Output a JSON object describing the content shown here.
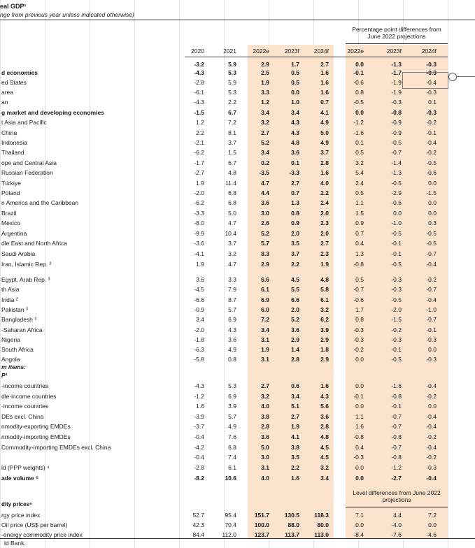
{
  "title": "eal GDP¹",
  "subtitle": "nge from previous year unless indicated otherwise)",
  "notes": {
    "pp_diff": "Percentage point differences from June 2022 projections",
    "level_diff": "Level differences from June 2022 projections"
  },
  "columns": [
    "2020",
    "2021",
    "2022e",
    "2023f",
    "2024f",
    "2022e",
    "2023f",
    "2024f"
  ],
  "rows": [
    {
      "label": "",
      "bold": true,
      "values": [
        "-3.2",
        "5.9",
        "2.9",
        "1.7",
        "2.7",
        "0.0",
        "-1.3",
        "-0.3"
      ]
    },
    {
      "label": "d economies",
      "bold": true,
      "values": [
        "-4.3",
        "5.3",
        "2.5",
        "0.5",
        "1.6",
        "-0.1",
        "-1.7",
        "-0.3"
      ]
    },
    {
      "label": "ed States",
      "values": [
        "-2.8",
        "5.9",
        "1.9",
        "0.5",
        "1.6",
        "-0.6",
        "-1.9",
        "-0.4"
      ]
    },
    {
      "label": "area",
      "values": [
        "-6.1",
        "5.3",
        "3.3",
        "0.0",
        "1.6",
        "0.8",
        "-1.9",
        "-0.3"
      ]
    },
    {
      "label": "an",
      "values": [
        "-4.3",
        "2.2",
        "1.2",
        "1.0",
        "0.7",
        "-0.5",
        "-0.3",
        "0.1"
      ]
    },
    {
      "label": "g market and developing economies",
      "bold": true,
      "values": [
        "-1.5",
        "6.7",
        "3.4",
        "3.4",
        "4.1",
        "0.0",
        "-0.8",
        "-0.3"
      ]
    },
    {
      "label": "t Asia and Pacific",
      "values": [
        "1.2",
        "7.2",
        "3.2",
        "4.3",
        "4.9",
        "-1.2",
        "-0.9",
        "-0.2"
      ]
    },
    {
      "label": "China",
      "values": [
        "2.2",
        "8.1",
        "2.7",
        "4.3",
        "5.0",
        "-1.6",
        "-0.9",
        "-0.1"
      ]
    },
    {
      "label": "Indonesia",
      "values": [
        "-2.1",
        "3.7",
        "5.2",
        "4.8",
        "4.9",
        "0.1",
        "-0.5",
        "-0.4"
      ]
    },
    {
      "label": "Thailand",
      "values": [
        "-6.2",
        "1.5",
        "3.4",
        "3.6",
        "3.7",
        "0.5",
        "-0.7",
        "-0.2"
      ]
    },
    {
      "label": "ope and Central Asia",
      "values": [
        "-1.7",
        "6.7",
        "0.2",
        "0.1",
        "2.8",
        "3.2",
        "-1.4",
        "-0.5"
      ]
    },
    {
      "label": "Russian Federation",
      "values": [
        "-2.7",
        "4.8",
        "-3.5",
        "-3.3",
        "1.6",
        "5.4",
        "-1.3",
        "-0.6"
      ]
    },
    {
      "label": "Türkiye",
      "values": [
        "1.9",
        "11.4",
        "4.7",
        "2.7",
        "4.0",
        "2.4",
        "-0.5",
        "0.0"
      ]
    },
    {
      "label": "Poland",
      "values": [
        "-2.0",
        "6.8",
        "4.4",
        "0.7",
        "2.2",
        "0.5",
        "-2.9",
        "-1.5"
      ]
    },
    {
      "label": "n America and the Caribbean",
      "values": [
        "-6.2",
        "6.8",
        "3.6",
        "1.3",
        "2.4",
        "1.1",
        "-0.6",
        "0.0"
      ]
    },
    {
      "label": "Brazil",
      "values": [
        "-3.3",
        "5.0",
        "3.0",
        "0.8",
        "2.0",
        "1.5",
        "0.0",
        "0.0"
      ]
    },
    {
      "label": "Mexico",
      "values": [
        "-8.0",
        "4.7",
        "2.6",
        "0.9",
        "2.3",
        "0.9",
        "-1.0",
        "0.3"
      ]
    },
    {
      "label": "Argentina",
      "values": [
        "-9.9",
        "10.4",
        "5.2",
        "2.0",
        "2.0",
        "0.7",
        "-0.5",
        "-0.5"
      ]
    },
    {
      "label": "dle East and North Africa",
      "values": [
        "-3.6",
        "3.7",
        "5.7",
        "3.5",
        "2.7",
        "0.4",
        "-0.1",
        "-0.5"
      ]
    },
    {
      "label": "Saudi Arabia",
      "values": [
        "-4.1",
        "3.2",
        "8.3",
        "3.7",
        "2.3",
        "1.3",
        "-0.1",
        "-0.7"
      ]
    },
    {
      "label": "Iran, Islamic Rep. ²",
      "values": [
        "1.9",
        "4.7",
        "2.9",
        "2.2",
        "1.9",
        "-0.8",
        "-0.5",
        "-0.4"
      ]
    },
    {
      "label": "Egypt, Arab Rep. ³",
      "values": [
        "3.6",
        "3.3",
        "6.6",
        "4.5",
        "4.8",
        "0.5",
        "-0.3",
        "-0.2"
      ]
    },
    {
      "label": "th Asia",
      "values": [
        "-4.5",
        "7.9",
        "6.1",
        "5.5",
        "5.8",
        "-0.7",
        "-0.3",
        "-0.7"
      ]
    },
    {
      "label": "India ²",
      "values": [
        "-6.6",
        "8.7",
        "6.9",
        "6.6",
        "6.1",
        "-0.6",
        "-0.5",
        "-0.4"
      ]
    },
    {
      "label": "Pakistan ³",
      "values": [
        "-0.9",
        "5.7",
        "6.0",
        "2.0",
        "3.2",
        "1.7",
        "-2.0",
        "-1.0"
      ]
    },
    {
      "label": "Bangladesh ³",
      "values": [
        "3.4",
        "6.9",
        "7.2",
        "5.2",
        "6.2",
        "0.8",
        "-1.5",
        "-0.7"
      ]
    },
    {
      "label": "-Saharan Africa",
      "values": [
        "-2.0",
        "4.3",
        "3.4",
        "3.6",
        "3.9",
        "-0.3",
        "-0.2",
        "-0.1"
      ]
    },
    {
      "label": "Nigeria",
      "values": [
        "-1.8",
        "3.6",
        "3.1",
        "2.9",
        "2.9",
        "-0.3",
        "-0.3",
        "-0.3"
      ]
    },
    {
      "label": "South Africa",
      "values": [
        "-6.3",
        "4.9",
        "1.9",
        "1.4",
        "1.8",
        "-0.2",
        "-0.1",
        "0.0"
      ]
    },
    {
      "label": "Angola",
      "values": [
        "-5.8",
        "0.8",
        "3.1",
        "2.8",
        "2.9",
        "0.0",
        "-0.5",
        "-0.3"
      ]
    },
    {
      "label": "m items:",
      "italic": true,
      "values": [
        "",
        "",
        "",
        "",
        "",
        "",
        "",
        ""
      ]
    },
    {
      "label": "P¹",
      "italic": true,
      "values": [
        "",
        "",
        "",
        "",
        "",
        "",
        "",
        ""
      ]
    },
    {
      "label": "",
      "values": [
        "",
        "",
        "",
        "",
        "",
        "",
        "",
        ""
      ]
    },
    {
      "label": "-income countries",
      "values": [
        "-4.3",
        "5.3",
        "2.7",
        "0.6",
        "1.6",
        "0.0",
        "-1.6",
        "-0.4"
      ]
    },
    {
      "label": "dle-income countries",
      "values": [
        "-1.2",
        "6.9",
        "3.2",
        "3.4",
        "4.3",
        "-0.1",
        "-0.8",
        "-0.2"
      ]
    },
    {
      "label": "-income countries",
      "values": [
        "1.6",
        "3.9",
        "4.0",
        "5.1",
        "5.6",
        "0.0",
        "-0.1",
        "0.0"
      ]
    },
    {
      "label": "DEs excl. China",
      "values": [
        "-3.9",
        "5.7",
        "3.8",
        "2.7",
        "3.6",
        "1.1",
        "-0.7",
        "-0.4"
      ]
    },
    {
      "label": "nmodity-exporting EMDEs",
      "values": [
        "-3.7",
        "4.9",
        "2.8",
        "1.9",
        "2.8",
        "1.6",
        "-0.7",
        "-0.4"
      ]
    },
    {
      "label": "nmodity-importing EMDEs",
      "values": [
        "-0.4",
        "7.6",
        "3.6",
        "4.1",
        "4.8",
        "-0.8",
        "-0.8",
        "-0.2"
      ]
    },
    {
      "label": "Commodity-importing EMDEs excl. China",
      "values": [
        "-4.2",
        "6.8",
        "5.0",
        "3.8",
        "4.5",
        "0.4",
        "-0.7",
        "-0.4"
      ]
    },
    {
      "label": "",
      "values": [
        "-0.4",
        "7.4",
        "3.0",
        "3.5",
        "4.5",
        "-0.3",
        "-0.8",
        "-0.2"
      ]
    },
    {
      "label": "ld (PPP weights) ⁴",
      "values": [
        "-2.8",
        "6.1",
        "3.1",
        "2.2",
        "3.2",
        "0.0",
        "-1.2",
        "-0.3"
      ]
    },
    {
      "label": "ade volume ⁵",
      "bold": true,
      "values": [
        "-8.2",
        "10.6",
        "4.0",
        "1.6",
        "3.4",
        "0.0",
        "-2.7",
        "-0.4"
      ]
    }
  ],
  "commodity_header": "dity prices⁶",
  "commodity_rows": [
    {
      "label": "rgy price index",
      "values": [
        "52.7",
        "95.4",
        "151.7",
        "130.5",
        "118.3",
        "7.1",
        "4.4",
        "7.2"
      ]
    },
    {
      "label": "Oil price (US$ per barrel)",
      "values": [
        "42.3",
        "70.4",
        "100.0",
        "88.0",
        "80.0",
        "0.0",
        "-4.0",
        "0.0"
      ]
    },
    {
      "label": "-energy commodity price index",
      "values": [
        "84.4",
        "112.0",
        "123.7",
        "113.7",
        "113.0",
        "-8.4",
        "-7.6",
        "-4.6"
      ]
    }
  ],
  "footer": "ld Bank."
}
